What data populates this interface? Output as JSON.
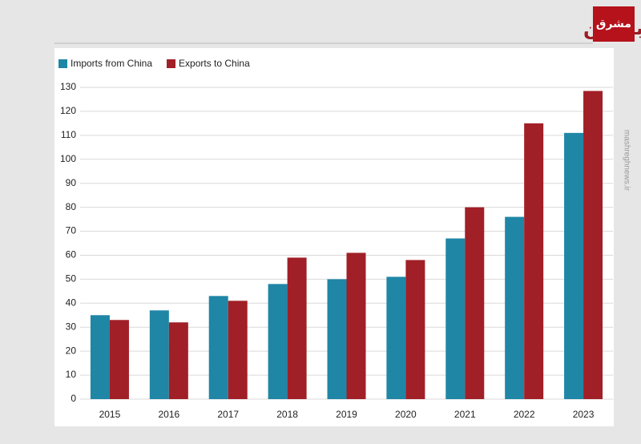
{
  "chart_data": {
    "type": "bar",
    "title": "رشد تجارت روسیه با چین",
    "logo": "مشرق",
    "watermark": "mashreghnews.ir",
    "categories": [
      "2015",
      "2016",
      "2017",
      "2018",
      "2019",
      "2020",
      "2021",
      "2022",
      "2023"
    ],
    "series": [
      {
        "name": "Imports from China",
        "color": "#1f86a6",
        "values": [
          35,
          37,
          43,
          48,
          50,
          51,
          67,
          76,
          111
        ]
      },
      {
        "name": "Exports to China",
        "color": "#a11f27",
        "values": [
          33,
          32,
          41,
          59,
          61,
          58,
          80,
          115,
          128.5
        ]
      }
    ],
    "ylim": [
      0,
      130
    ],
    "yticks": [
      0,
      10,
      20,
      30,
      40,
      50,
      60,
      70,
      80,
      90,
      100,
      110,
      120,
      130
    ],
    "grid": true,
    "legend": "top-left"
  }
}
